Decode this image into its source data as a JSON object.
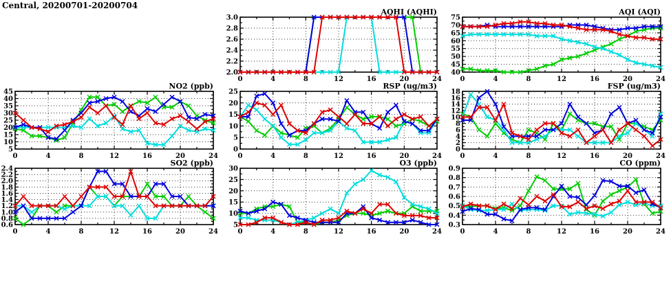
{
  "page_title": "Central, 20200701-20200704",
  "x_axis": {
    "range": [
      0,
      24
    ],
    "ticks": [
      0,
      4,
      8,
      12,
      16,
      20,
      24
    ],
    "tick_labels": [
      "0",
      "4",
      "8",
      "12",
      "16",
      "20",
      "24"
    ],
    "minor_tick_step": 2
  },
  "series_colors": {
    "blue": "#0000dd",
    "red": "#dd0000",
    "green": "#00cc00",
    "cyan": "#00dddd"
  },
  "style": {
    "marker": "x-cross",
    "line_width": 2,
    "grid": "dotted",
    "background": "#ffffff",
    "text_color": "#000000"
  },
  "chart_data": [
    {
      "id": "aqhi",
      "type": "line",
      "title": "AQHI (AQHI)",
      "y_axis": {
        "range": [
          2.0,
          3.0
        ],
        "ticks": [
          2.0,
          2.2,
          2.4,
          2.6,
          2.8,
          3.0
        ],
        "tick_labels": [
          "2.0",
          "2.2",
          "2.4",
          "2.6",
          "2.8",
          "3.0"
        ]
      },
      "series": [
        {
          "name": "green",
          "values": [
            2,
            2,
            2,
            2,
            2,
            2,
            2,
            2,
            2,
            3,
            3,
            3,
            3,
            3,
            3,
            3,
            3,
            3,
            3,
            3,
            3,
            3,
            2,
            2,
            2
          ]
        },
        {
          "name": "cyan",
          "values": [
            2,
            2,
            2,
            2,
            2,
            2,
            2,
            2,
            2,
            2,
            2,
            2,
            2,
            3,
            3,
            3,
            3,
            2,
            2,
            2,
            2,
            2,
            2,
            2,
            2
          ]
        },
        {
          "name": "blue",
          "values": [
            2,
            2,
            2,
            2,
            2,
            2,
            2,
            2,
            2,
            3,
            3,
            3,
            3,
            3,
            3,
            3,
            3,
            3,
            3,
            3,
            3,
            2,
            2,
            2,
            2
          ]
        },
        {
          "name": "red",
          "values": [
            2,
            2,
            2,
            2,
            2,
            2,
            2,
            2,
            2,
            2,
            3,
            3,
            3,
            3,
            3,
            3,
            3,
            3,
            3,
            3,
            2,
            2,
            2,
            2,
            2
          ]
        }
      ]
    },
    {
      "id": "aqi",
      "type": "line",
      "title": "AQI (AQI)",
      "y_axis": {
        "range": [
          40,
          75
        ],
        "ticks": [
          40,
          45,
          50,
          55,
          60,
          65,
          70,
          75
        ],
        "tick_labels": [
          "40",
          "45",
          "50",
          "55",
          "60",
          "65",
          "70",
          "75"
        ]
      },
      "series": [
        {
          "name": "green",
          "values": [
            42,
            42,
            41,
            41,
            41,
            40,
            40,
            40,
            41,
            42,
            44,
            45,
            48,
            49,
            50,
            52,
            54,
            56,
            58,
            61,
            63,
            66,
            67,
            68,
            68
          ]
        },
        {
          "name": "cyan",
          "values": [
            63,
            64,
            64,
            64,
            64,
            64,
            64,
            64,
            64,
            63,
            63,
            63,
            61,
            60,
            59,
            58,
            56,
            55,
            53,
            51,
            48,
            46,
            45,
            44,
            43
          ]
        },
        {
          "name": "blue",
          "values": [
            69,
            69,
            69,
            70,
            69,
            69,
            69,
            69,
            69,
            69,
            69,
            69,
            69,
            70,
            70,
            70,
            69,
            68,
            67,
            67,
            68,
            68,
            69,
            69,
            69
          ]
        },
        {
          "name": "red",
          "values": [
            69,
            69,
            69,
            69,
            70,
            71,
            71,
            72,
            72,
            71,
            71,
            70,
            70,
            69,
            68,
            67,
            67,
            67,
            66,
            64,
            63,
            62,
            62,
            61,
            61
          ]
        }
      ]
    },
    {
      "id": "no2",
      "type": "line",
      "title": "NO2 (ppb)",
      "y_axis": {
        "range": [
          5,
          45
        ],
        "ticks": [
          5,
          10,
          15,
          20,
          25,
          30,
          35,
          40,
          45
        ],
        "tick_labels": [
          "5",
          "10",
          "15",
          "20",
          "25",
          "30",
          "35",
          "40",
          "45"
        ]
      },
      "series": [
        {
          "name": "green",
          "values": [
            19,
            18,
            14,
            14,
            13,
            11,
            13,
            23,
            32,
            41,
            41,
            35,
            36,
            31,
            35,
            38,
            37,
            41,
            34,
            34,
            38,
            35,
            28,
            25,
            23
          ]
        },
        {
          "name": "cyan",
          "values": [
            20,
            20,
            20,
            20,
            20,
            20,
            20,
            21,
            20,
            26,
            21,
            23,
            28,
            19,
            17,
            18,
            9,
            8,
            8,
            14,
            21,
            18,
            17,
            19,
            18
          ]
        },
        {
          "name": "blue",
          "values": [
            20,
            22,
            20,
            20,
            13,
            12,
            18,
            25,
            30,
            37,
            38,
            40,
            41,
            38,
            31,
            28,
            33,
            31,
            36,
            41,
            38,
            27,
            26,
            29,
            28
          ]
        },
        {
          "name": "red",
          "values": [
            30,
            25,
            20,
            19,
            17,
            21,
            22,
            24,
            27,
            34,
            30,
            35,
            27,
            22,
            35,
            26,
            30,
            23,
            22,
            26,
            28,
            24,
            19,
            24,
            26
          ]
        }
      ]
    },
    {
      "id": "rsp",
      "type": "line",
      "title": "RSP (ug/m3)",
      "y_axis": {
        "range": [
          0,
          25
        ],
        "ticks": [
          0,
          5,
          10,
          15,
          20,
          25
        ],
        "tick_labels": [
          "0",
          "5",
          "10",
          "15",
          "20",
          "25"
        ]
      },
      "series": [
        {
          "name": "green",
          "values": [
            14,
            12,
            8,
            6,
            10,
            7,
            6,
            5,
            9,
            10,
            7,
            9,
            13,
            18,
            15,
            13,
            14,
            14,
            13,
            10,
            11,
            13,
            12,
            10,
            12
          ]
        },
        {
          "name": "cyan",
          "values": [
            14,
            19,
            17,
            13,
            10,
            5,
            2,
            2,
            4,
            7,
            7,
            8,
            12,
            9,
            8,
            3,
            3,
            3,
            4,
            5,
            12,
            11,
            7,
            7,
            13
          ]
        },
        {
          "name": "blue",
          "values": [
            14,
            14,
            23,
            24,
            20,
            11,
            6,
            8,
            8,
            11,
            13,
            13,
            12,
            21,
            16,
            16,
            11,
            9,
            16,
            19,
            12,
            11,
            8,
            8,
            13
          ]
        },
        {
          "name": "red",
          "values": [
            14,
            16,
            20,
            19,
            15,
            19,
            11,
            8,
            7,
            11,
            16,
            17,
            14,
            11,
            15,
            11,
            11,
            14,
            10,
            13,
            15,
            13,
            14,
            10,
            13
          ]
        }
      ]
    },
    {
      "id": "fsp",
      "type": "line",
      "title": "FSP (ug/m3)",
      "y_axis": {
        "range": [
          0,
          18
        ],
        "ticks": [
          0,
          2,
          4,
          6,
          8,
          10,
          12,
          14,
          16,
          18
        ],
        "tick_labels": [
          "0",
          "2",
          "4",
          "6",
          "8",
          "10",
          "12",
          "14",
          "16",
          "18"
        ]
      },
      "series": [
        {
          "name": "green",
          "values": [
            11,
            10,
            6,
            4,
            8,
            5,
            3,
            2,
            6,
            5,
            3,
            8,
            6,
            11,
            9,
            8,
            8,
            7,
            7,
            3,
            8,
            8,
            7,
            6,
            9
          ]
        },
        {
          "name": "cyan",
          "values": [
            10,
            17,
            14,
            10,
            9,
            6,
            2,
            2,
            2,
            3,
            4,
            6,
            6,
            6,
            4,
            2,
            2,
            2,
            2,
            4,
            5,
            8,
            6,
            4,
            11
          ]
        },
        {
          "name": "blue",
          "values": [
            9,
            9,
            16,
            18,
            14,
            7,
            4,
            4,
            4,
            4,
            6,
            6,
            8,
            14,
            10,
            8,
            5,
            6,
            11,
            13,
            8,
            9,
            6,
            5,
            10
          ]
        },
        {
          "name": "red",
          "values": [
            10,
            10,
            13,
            13,
            9,
            14,
            5,
            4,
            3,
            6,
            8,
            8,
            5,
            4,
            6,
            2,
            4,
            6,
            2,
            6,
            8,
            6,
            4,
            1,
            3
          ]
        }
      ]
    },
    {
      "id": "so2",
      "type": "line",
      "title": "SO2 (ppb)",
      "y_axis": {
        "range": [
          0.6,
          2.4
        ],
        "ticks": [
          0.6,
          0.8,
          1.0,
          1.2,
          1.4,
          1.6,
          1.8,
          2.0,
          2.2,
          2.4
        ],
        "tick_labels": [
          "0.6",
          "0.8",
          "1.0",
          "1.2",
          "1.4",
          "1.6",
          "1.8",
          "2.0",
          "2.2",
          "2.4"
        ]
      },
      "series": [
        {
          "name": "green",
          "values": [
            0.8,
            0.6,
            0.8,
            1.2,
            1.2,
            1.0,
            1.2,
            1.2,
            1.2,
            1.8,
            1.5,
            1.5,
            1.2,
            1.5,
            1.5,
            1.5,
            1.9,
            1.5,
            1.5,
            1.2,
            1.2,
            1.5,
            1.2,
            1.0,
            0.8
          ]
        },
        {
          "name": "cyan",
          "values": [
            1.2,
            1.2,
            1.0,
            1.2,
            1.2,
            1.2,
            1.1,
            1.2,
            1.2,
            1.2,
            1.5,
            1.5,
            1.2,
            1.2,
            0.9,
            1.2,
            0.8,
            0.8,
            1.2,
            1.2,
            1.2,
            1.2,
            1.2,
            1.2,
            1.2
          ]
        },
        {
          "name": "blue",
          "values": [
            1.0,
            1.2,
            0.8,
            0.8,
            0.8,
            0.8,
            0.8,
            1.0,
            1.2,
            1.8,
            2.3,
            2.3,
            1.9,
            1.9,
            1.5,
            1.5,
            1.5,
            1.9,
            1.9,
            1.5,
            1.5,
            1.2,
            1.2,
            1.2,
            1.2
          ]
        },
        {
          "name": "red",
          "values": [
            1.2,
            1.5,
            1.2,
            1.2,
            1.2,
            1.2,
            1.5,
            1.2,
            1.5,
            1.8,
            1.8,
            1.8,
            1.5,
            1.5,
            2.3,
            1.5,
            1.5,
            1.2,
            1.2,
            1.2,
            1.2,
            1.2,
            1.2,
            1.2,
            1.5
          ]
        }
      ]
    },
    {
      "id": "o3",
      "type": "line",
      "title": "O3 (ppb)",
      "y_axis": {
        "range": [
          5,
          30
        ],
        "ticks": [
          5,
          10,
          15,
          20,
          25,
          30
        ],
        "tick_labels": [
          "5",
          "10",
          "15",
          "20",
          "25",
          "30"
        ]
      },
      "series": [
        {
          "name": "green",
          "values": [
            10,
            10,
            12,
            13,
            13,
            14,
            13,
            6,
            6,
            5,
            6,
            6,
            7,
            9,
            10,
            10,
            9,
            10,
            11,
            10,
            10,
            13,
            11,
            11,
            11
          ]
        },
        {
          "name": "cyan",
          "values": [
            8,
            8,
            7,
            7,
            7,
            6,
            5,
            6,
            7,
            8,
            10,
            12,
            10,
            19,
            23,
            25,
            29,
            27,
            26,
            24,
            17,
            14,
            13,
            12,
            10
          ]
        },
        {
          "name": "blue",
          "values": [
            11,
            10,
            11,
            12,
            15,
            14,
            9,
            8,
            7,
            6,
            6,
            6,
            6,
            10,
            10,
            13,
            8,
            7,
            6,
            6,
            6,
            7,
            6,
            5,
            5
          ]
        },
        {
          "name": "red",
          "values": [
            5,
            5,
            6,
            8,
            8,
            6,
            5,
            5,
            6,
            5,
            7,
            7,
            8,
            11,
            10,
            12,
            10,
            14,
            14,
            10,
            9,
            9,
            9,
            8,
            8
          ]
        }
      ]
    },
    {
      "id": "co",
      "type": "line",
      "title": "CO (ppm)",
      "y_axis": {
        "range": [
          0.3,
          0.9
        ],
        "ticks": [
          0.3,
          0.4,
          0.5,
          0.6,
          0.7,
          0.8,
          0.9
        ],
        "tick_labels": [
          "0.3",
          "0.4",
          "0.5",
          "0.6",
          "0.7",
          "0.8",
          "0.9"
        ]
      },
      "series": [
        {
          "name": "green",
          "values": [
            0.5,
            0.49,
            0.5,
            0.5,
            0.47,
            0.48,
            0.45,
            0.5,
            0.66,
            0.81,
            0.77,
            0.68,
            0.68,
            0.68,
            0.74,
            0.46,
            0.4,
            0.55,
            0.62,
            0.66,
            0.7,
            0.78,
            0.52,
            0.42,
            0.44
          ]
        },
        {
          "name": "cyan",
          "values": [
            0.5,
            0.46,
            0.45,
            0.45,
            0.46,
            0.46,
            0.52,
            0.45,
            0.46,
            0.46,
            0.45,
            0.5,
            0.5,
            0.41,
            0.43,
            0.42,
            0.41,
            0.39,
            0.43,
            0.51,
            0.54,
            0.51,
            0.53,
            0.5,
            0.5
          ]
        },
        {
          "name": "blue",
          "values": [
            0.44,
            0.47,
            0.46,
            0.41,
            0.41,
            0.36,
            0.34,
            0.46,
            0.48,
            0.48,
            0.46,
            0.6,
            0.71,
            0.6,
            0.59,
            0.51,
            0.61,
            0.77,
            0.76,
            0.71,
            0.71,
            0.64,
            0.67,
            0.52,
            0.48
          ]
        },
        {
          "name": "red",
          "values": [
            0.49,
            0.52,
            0.5,
            0.5,
            0.46,
            0.52,
            0.47,
            0.58,
            0.51,
            0.6,
            0.55,
            0.62,
            0.49,
            0.49,
            0.54,
            0.47,
            0.5,
            0.47,
            0.52,
            0.55,
            0.66,
            0.54,
            0.54,
            0.54,
            0.48
          ]
        }
      ]
    }
  ]
}
